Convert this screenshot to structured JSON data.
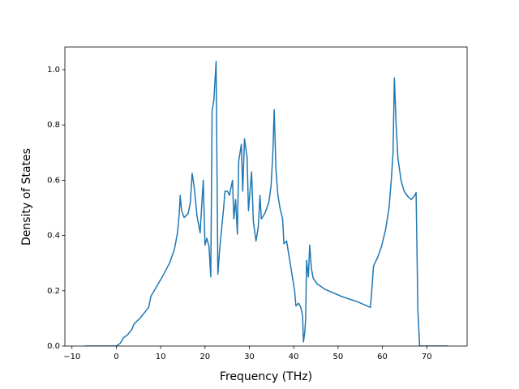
{
  "chart_data": {
    "type": "line",
    "x_label": "Frequency (THz)",
    "y_label": "Density of States",
    "x": [
      -7.1,
      0,
      0.9,
      1.6,
      2.5,
      3.5,
      4,
      5.3,
      7.3,
      7.8,
      8.9,
      10.7,
      12,
      13.1,
      13.8,
      14.2,
      14.4,
      14.7,
      15.3,
      16.2,
      16.7,
      17.1,
      17.6,
      18.2,
      18.9,
      19.6,
      20,
      20.4,
      20.9,
      21.3,
      21.6,
      22,
      22.5,
      22.9,
      23.3,
      23.6,
      24.2,
      24.5,
      25.1,
      25.5,
      26.2,
      26.5,
      26.9,
      27.3,
      27.6,
      28.2,
      28.5,
      28.9,
      29.5,
      29.8,
      30.5,
      30.9,
      31.5,
      32,
      32.4,
      32.7,
      33.5,
      34.4,
      34.9,
      35.3,
      35.6,
      36,
      36.4,
      36.9,
      37.5,
      37.8,
      38.4,
      38.9,
      39.5,
      40.2,
      40.5,
      41.1,
      41.6,
      42,
      42.2,
      42.5,
      42.7,
      42.9,
      43.3,
      43.6,
      44,
      44.4,
      45.3,
      47.1,
      50.7,
      54.4,
      57.3,
      57.6,
      58,
      58.9,
      59.8,
      60.7,
      61.5,
      62,
      62.4,
      62.7,
      63.1,
      63.5,
      64.2,
      64.9,
      65.8,
      66.5,
      67.3,
      67.6,
      68,
      68.4,
      74.9
    ],
    "series": [
      {
        "color": "#1f77b4",
        "values": [
          0,
          0,
          0.01,
          0.03,
          0.04,
          0.06,
          0.08,
          0.1,
          0.14,
          0.18,
          0.21,
          0.26,
          0.3,
          0.35,
          0.41,
          0.48,
          0.545,
          0.49,
          0.465,
          0.48,
          0.52,
          0.625,
          0.57,
          0.47,
          0.41,
          0.6,
          0.365,
          0.39,
          0.36,
          0.25,
          0.85,
          0.89,
          1.03,
          0.26,
          0.35,
          0.4,
          0.5,
          0.56,
          0.56,
          0.545,
          0.6,
          0.46,
          0.53,
          0.405,
          0.67,
          0.73,
          0.56,
          0.75,
          0.68,
          0.49,
          0.63,
          0.45,
          0.38,
          0.43,
          0.545,
          0.46,
          0.48,
          0.52,
          0.58,
          0.7,
          0.855,
          0.64,
          0.55,
          0.5,
          0.46,
          0.37,
          0.38,
          0.33,
          0.27,
          0.2,
          0.145,
          0.155,
          0.14,
          0.11,
          0.015,
          0.05,
          0.1,
          0.31,
          0.25,
          0.365,
          0.28,
          0.245,
          0.225,
          0.205,
          0.18,
          0.16,
          0.14,
          0.2,
          0.29,
          0.32,
          0.36,
          0.42,
          0.5,
          0.6,
          0.7,
          0.97,
          0.8,
          0.68,
          0.6,
          0.56,
          0.54,
          0.53,
          0.545,
          0.555,
          0.13,
          0,
          0
        ]
      }
    ],
    "xlim": [
      -11.6,
      79.1
    ],
    "ylim": [
      0,
      1.082
    ],
    "xticks": [
      {
        "value": -10,
        "label": "−10"
      },
      0,
      10,
      20,
      30,
      40,
      50,
      60,
      70
    ],
    "yticks": [
      {
        "value": 0,
        "label": "0.0"
      },
      {
        "value": 0.2,
        "label": "0.2"
      },
      {
        "value": 0.4,
        "label": "0.4"
      },
      {
        "value": 0.6,
        "label": "0.6"
      },
      {
        "value": 0.8,
        "label": "0.8"
      },
      {
        "value": 1,
        "label": "1.0"
      }
    ],
    "grid": false
  }
}
